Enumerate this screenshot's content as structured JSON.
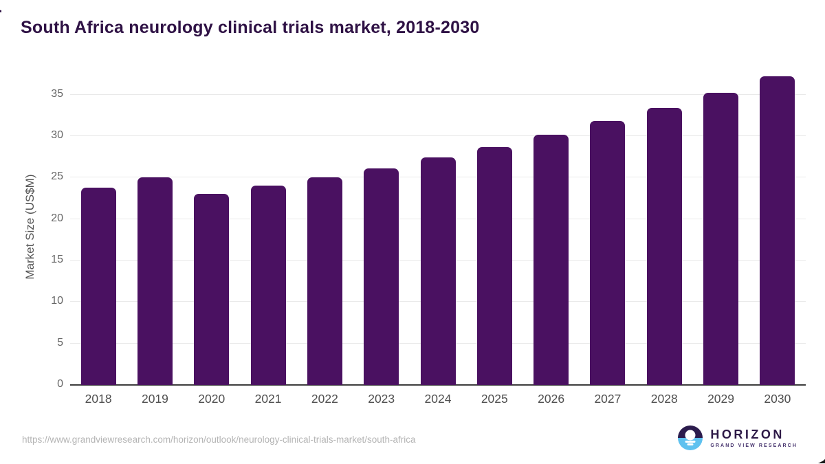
{
  "page": {
    "title": "South Africa neurology clinical trials market, 2018-2030"
  },
  "chart_data": {
    "type": "bar",
    "title": "South Africa neurology clinical trials market, 2018-2030",
    "categories": [
      "2018",
      "2019",
      "2020",
      "2021",
      "2022",
      "2023",
      "2024",
      "2025",
      "2026",
      "2027",
      "2028",
      "2029",
      "2030"
    ],
    "values": [
      23.8,
      25.0,
      23.0,
      24.0,
      25.0,
      26.1,
      27.4,
      28.7,
      30.2,
      31.8,
      33.4,
      35.2,
      37.2
    ],
    "xlabel": "",
    "ylabel": "Market Size (US$M)",
    "ylim": [
      0,
      38
    ],
    "yticks": [
      0,
      5,
      10,
      15,
      20,
      25,
      30,
      35
    ],
    "grid": true,
    "legend_position": "none",
    "bar_color": "#4A1161"
  },
  "footer": {
    "source_url": "https://www.grandviewresearch.com/horizon/outlook/neurology-clinical-trials-market/south-africa",
    "logo": {
      "brand": "HORIZON",
      "tagline": "GRAND VIEW RESEARCH"
    }
  },
  "colors": {
    "title_text": "#2F1245",
    "bar": "#4A1161",
    "gridline": "#E9E9E9",
    "axis_line": "#3D3D3D",
    "y_tick_label": "#666666",
    "x_tick_label": "#4F4F4F",
    "url_text": "#B4B4B4",
    "logo_dark": "#2B1B4D",
    "logo_blue": "#5EC1EF"
  }
}
